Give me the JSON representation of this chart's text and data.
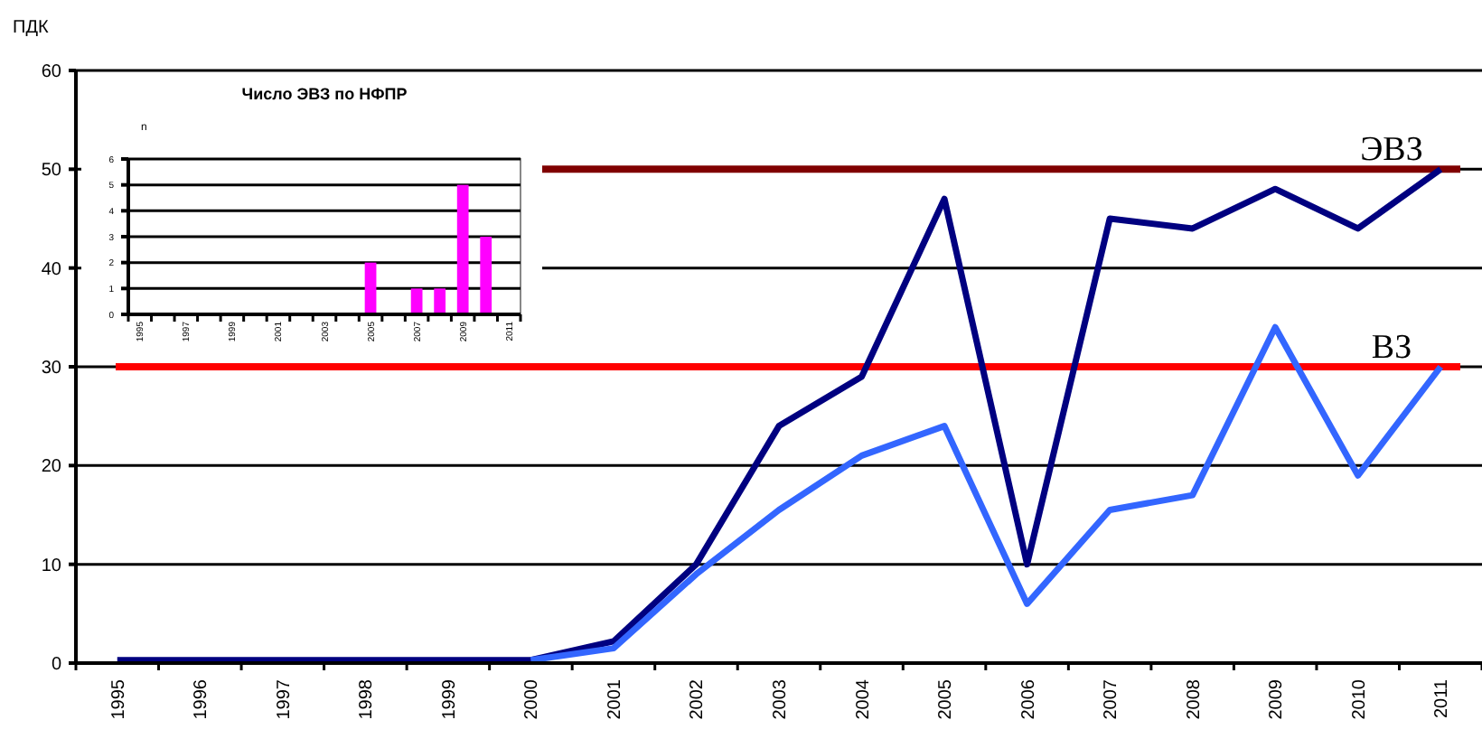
{
  "chart_data": [
    {
      "type": "line",
      "ylabel": "ПДК",
      "categories": [
        "1995",
        "1996",
        "1997",
        "1998",
        "1999",
        "2000",
        "2001",
        "2002",
        "2003",
        "2004",
        "2005",
        "2006",
        "2007",
        "2008",
        "2009",
        "2010",
        "2011"
      ],
      "series": [
        {
          "color": "#000080",
          "values": [
            0.3,
            0.3,
            0.3,
            0.3,
            0.3,
            0.3,
            2.2,
            10,
            24,
            29,
            47,
            10,
            45,
            44,
            48,
            44,
            50
          ]
        },
        {
          "color": "#3366ff",
          "values": [
            null,
            null,
            null,
            null,
            null,
            0.3,
            1.5,
            9,
            15.5,
            21,
            24,
            6,
            15.5,
            17,
            34,
            19,
            30
          ]
        }
      ],
      "ylim": [
        0,
        60
      ],
      "yticks": [
        0,
        10,
        20,
        30,
        40,
        50,
        60
      ],
      "grid": "y",
      "marker": "none",
      "line_style": "solid",
      "ref_lines": [
        {
          "axis": "y",
          "value": 50,
          "label": "ЭВЗ",
          "color": "#800000"
        },
        {
          "axis": "y",
          "value": 30,
          "label": "ВЗ",
          "color": "#ff0000"
        }
      ]
    },
    {
      "type": "bar",
      "title": "Число ЭВЗ по НФПР",
      "ylabel": "n",
      "categories": [
        "1995",
        null,
        "1997",
        null,
        "1999",
        null,
        "2001",
        null,
        "2003",
        null,
        "2005",
        null,
        "2007",
        null,
        "2009",
        null,
        "2011"
      ],
      "values": [
        0,
        0,
        0,
        0,
        0,
        0,
        0,
        0,
        0,
        0,
        2,
        0,
        1,
        1,
        5,
        3,
        0
      ],
      "color": "#ff00ff",
      "ylim": [
        0,
        6
      ],
      "yticks": [
        0,
        1,
        2,
        3,
        4,
        5,
        6
      ],
      "grid": "y"
    }
  ]
}
